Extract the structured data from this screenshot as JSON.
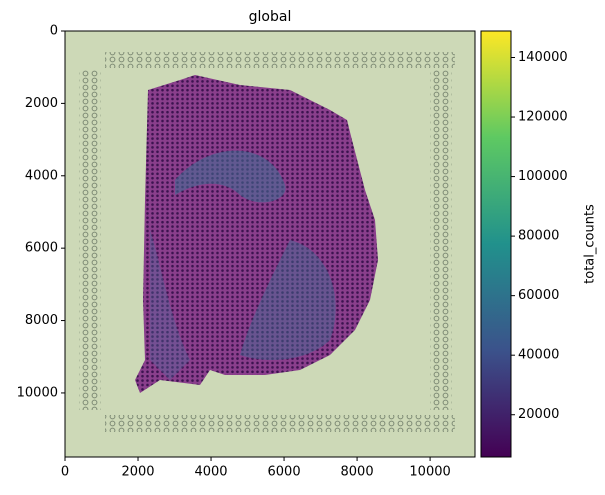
{
  "chart_data": {
    "type": "spatial",
    "title": "global",
    "xlim": [
      0,
      11230
    ],
    "xticks": [
      0,
      2000,
      4000,
      6000,
      8000,
      10000
    ],
    "ylim": [
      11770,
      0
    ],
    "yticks": [
      0,
      2000,
      4000,
      6000,
      8000,
      10000
    ],
    "colorbar": {
      "label": "total_counts",
      "colormap": [
        "#440154",
        "#3b528b",
        "#21918c",
        "#5ec962",
        "#fde725"
      ],
      "lim": [
        5800,
        148900
      ],
      "ticks": [
        20000,
        40000,
        60000,
        80000,
        100000,
        120000,
        140000
      ]
    }
  }
}
